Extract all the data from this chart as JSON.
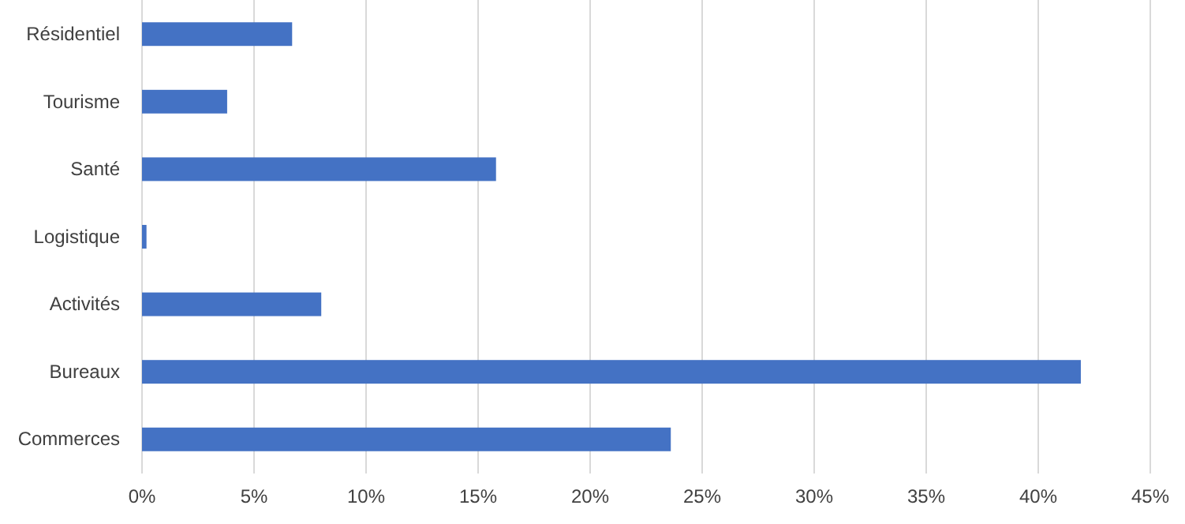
{
  "chart_data": {
    "type": "bar",
    "orientation": "horizontal",
    "categories": [
      "Résidentiel",
      "Tourisme",
      "Santé",
      "Logistique",
      "Activités",
      "Bureaux",
      "Commerces"
    ],
    "values": [
      6.7,
      3.8,
      15.8,
      0.2,
      8.0,
      41.9,
      23.6
    ],
    "color": "#4472c4",
    "xlim": [
      0,
      45
    ],
    "xticks": [
      {
        "value": 0,
        "label": "0%"
      },
      {
        "value": 5,
        "label": "5%"
      },
      {
        "value": 10,
        "label": "10%"
      },
      {
        "value": 15,
        "label": "15%"
      },
      {
        "value": 20,
        "label": "20%"
      },
      {
        "value": 25,
        "label": "25%"
      },
      {
        "value": 30,
        "label": "30%"
      },
      {
        "value": 35,
        "label": "35%"
      },
      {
        "value": 40,
        "label": "40%"
      },
      {
        "value": 45,
        "label": "45%"
      }
    ],
    "grid": "x"
  }
}
